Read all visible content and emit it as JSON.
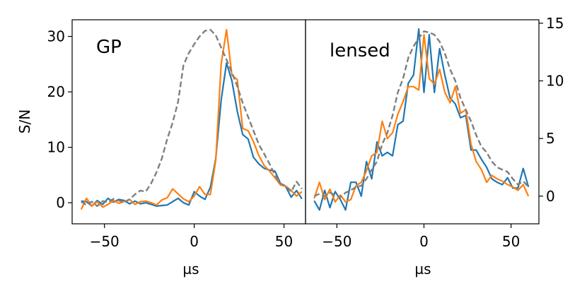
{
  "chart_data": [
    {
      "type": "line",
      "panel_label": "GP",
      "xlabel": "µs",
      "ylabel": "S/N",
      "xlim": [
        -68,
        62
      ],
      "ylim": [
        -3.8,
        33
      ],
      "x_ticks": [
        -50,
        0,
        50
      ],
      "y_ticks": [
        0,
        10,
        20,
        30
      ],
      "y_axis_side": "left",
      "grid": false,
      "colors": {
        "blue": "#1f77b4",
        "orange": "#ff7f0e",
        "dashed": "#7f7f7f"
      },
      "series": [
        {
          "style": "solid",
          "color": "#1f77b4",
          "x": [
            -63,
            -60,
            -57,
            -54,
            -51,
            -48,
            -45,
            -42,
            -39,
            -36,
            -33,
            -30,
            -27,
            -24,
            -21,
            -18,
            -15,
            -12,
            -9,
            -6,
            -3,
            0,
            3,
            6,
            9,
            12,
            15,
            18,
            21,
            24,
            27,
            30,
            33,
            36,
            39,
            42,
            45,
            48,
            51,
            54,
            57,
            60
          ],
          "y": [
            0.3,
            0.2,
            -0.6,
            0.4,
            -0.3,
            0.8,
            0.1,
            0.6,
            0.4,
            -0.2,
            0.3,
            -0.2,
            0.0,
            -0.3,
            -0.6,
            -0.5,
            -0.4,
            0.2,
            0.8,
            0.0,
            -0.4,
            2.0,
            1.2,
            0.6,
            2.8,
            8.0,
            18.5,
            25.2,
            22.0,
            16.5,
            12.3,
            11.5,
            8.2,
            7.0,
            6.2,
            5.9,
            5.7,
            3.5,
            2.9,
            1.0,
            2.2,
            0.7
          ]
        },
        {
          "style": "solid",
          "color": "#ff7f0e",
          "x": [
            -63,
            -60,
            -57,
            -54,
            -51,
            -48,
            -45,
            -42,
            -39,
            -36,
            -33,
            -30,
            -27,
            -24,
            -21,
            -18,
            -15,
            -12,
            -9,
            -6,
            -3,
            0,
            3,
            6,
            9,
            12,
            15,
            18,
            21,
            24,
            27,
            30,
            33,
            36,
            39,
            42,
            45,
            48,
            51,
            54,
            57,
            60
          ],
          "y": [
            -1.2,
            0.8,
            -0.6,
            0.2,
            -0.8,
            -0.3,
            0.4,
            -0.1,
            0.2,
            0.6,
            -0.3,
            0.2,
            0.3,
            0.0,
            -0.4,
            0.5,
            0.9,
            2.5,
            1.6,
            0.7,
            0.2,
            1.2,
            2.9,
            1.5,
            1.5,
            7.7,
            25.0,
            31.2,
            23.0,
            22.2,
            13.4,
            13.0,
            11.0,
            8.5,
            6.7,
            5.7,
            4.5,
            3.2,
            3.0,
            2.2,
            1.2,
            2.0
          ]
        },
        {
          "style": "dashed",
          "color": "#7f7f7f",
          "x": [
            -63,
            -60,
            -57,
            -54,
            -51,
            -48,
            -45,
            -42,
            -39,
            -36,
            -33,
            -30,
            -27,
            -24,
            -21,
            -18,
            -15,
            -12,
            -9,
            -6,
            -3,
            0,
            3,
            6,
            9,
            12,
            15,
            18,
            21,
            24,
            27,
            30,
            33,
            36,
            39,
            42,
            45,
            48,
            51,
            54,
            57,
            60
          ],
          "y": [
            0.2,
            -0.4,
            0.2,
            -0.6,
            0.3,
            0.1,
            0.7,
            0.4,
            0.1,
            0.6,
            1.5,
            2.2,
            2.0,
            3.5,
            5.5,
            8.0,
            11.5,
            14.5,
            18.2,
            24.8,
            27.0,
            28.6,
            30.0,
            31.0,
            31.2,
            30.2,
            28.0,
            25.8,
            23.5,
            21.0,
            18.0,
            15.5,
            13.0,
            10.5,
            8.8,
            7.0,
            5.0,
            3.5,
            3.0,
            2.0,
            3.8,
            2.5
          ]
        }
      ]
    },
    {
      "type": "line",
      "panel_label": "lensed",
      "xlabel": "µs",
      "ylabel": "",
      "xlim": [
        -68,
        66
      ],
      "ylim": [
        -2.4,
        15.3
      ],
      "x_ticks": [
        -50,
        0,
        50
      ],
      "y_ticks": [
        0,
        5,
        10,
        15
      ],
      "y_axis_side": "right",
      "grid": false,
      "series": [
        {
          "style": "solid",
          "color": "#1f77b4",
          "x": [
            -63,
            -60,
            -57,
            -54,
            -51,
            -48,
            -45,
            -42,
            -39,
            -36,
            -33,
            -30,
            -27,
            -24,
            -21,
            -18,
            -15,
            -12,
            -9,
            -6,
            -3,
            0,
            3,
            6,
            9,
            12,
            15,
            18,
            21,
            24,
            27,
            30,
            33,
            36,
            39,
            42,
            45,
            48,
            51,
            54,
            57,
            60
          ],
          "y": [
            -0.4,
            -1.2,
            0.5,
            -1.0,
            0.4,
            -0.3,
            -1.2,
            1.2,
            1.2,
            0.0,
            3.0,
            1.5,
            4.7,
            3.5,
            3.8,
            3.5,
            6.2,
            6.5,
            9.8,
            10.5,
            14.5,
            9.0,
            14.0,
            9.0,
            12.8,
            10.5,
            8.5,
            8.0,
            6.8,
            7.0,
            4.0,
            4.0,
            3.2,
            2.5,
            1.5,
            1.2,
            1.0,
            1.6,
            0.7,
            0.7,
            2.4,
            0.8
          ]
        },
        {
          "style": "solid",
          "color": "#ff7f0e",
          "x": [
            -63,
            -60,
            -57,
            -54,
            -51,
            -48,
            -45,
            -42,
            -39,
            -36,
            -33,
            -30,
            -27,
            -24,
            -21,
            -18,
            -15,
            -12,
            -9,
            -6,
            -3,
            0,
            3,
            6,
            9,
            12,
            15,
            18,
            21,
            24,
            27,
            30,
            33,
            36,
            39,
            42,
            45,
            48,
            51,
            54,
            57,
            60
          ],
          "y": [
            -0.2,
            1.2,
            -0.3,
            0.6,
            -0.5,
            0.1,
            -0.5,
            -0.3,
            0.9,
            1.2,
            2.2,
            3.5,
            3.8,
            6.5,
            5.0,
            5.5,
            7.1,
            8.2,
            9.5,
            9.5,
            9.2,
            14.0,
            10.2,
            9.7,
            11.0,
            9.0,
            8.1,
            9.5,
            7.2,
            7.5,
            4.5,
            3.0,
            2.3,
            1.2,
            1.8,
            1.5,
            1.3,
            1.0,
            0.8,
            0.5,
            1.0,
            0.0
          ]
        },
        {
          "style": "dashed",
          "color": "#7f7f7f",
          "x": [
            -63,
            -60,
            -57,
            -54,
            -51,
            -48,
            -45,
            -42,
            -39,
            -36,
            -33,
            -30,
            -27,
            -24,
            -21,
            -18,
            -15,
            -12,
            -9,
            -6,
            -3,
            0,
            3,
            6,
            9,
            12,
            15,
            18,
            21,
            24,
            27,
            30,
            33,
            36,
            39,
            42,
            45,
            48,
            51,
            54,
            57,
            60
          ],
          "y": [
            0.0,
            0.2,
            0.0,
            0.3,
            0.1,
            -0.1,
            0.3,
            0.5,
            0.8,
            0.9,
            1.5,
            2.3,
            3.0,
            4.5,
            5.5,
            7.0,
            9.0,
            10.2,
            12.0,
            13.0,
            13.7,
            14.3,
            14.2,
            14.0,
            13.4,
            12.4,
            11.0,
            10.0,
            8.5,
            7.5,
            6.5,
            5.3,
            4.3,
            3.8,
            3.0,
            2.5,
            2.3,
            2.1,
            1.5,
            1.0,
            1.3,
            0.8
          ]
        }
      ]
    }
  ]
}
